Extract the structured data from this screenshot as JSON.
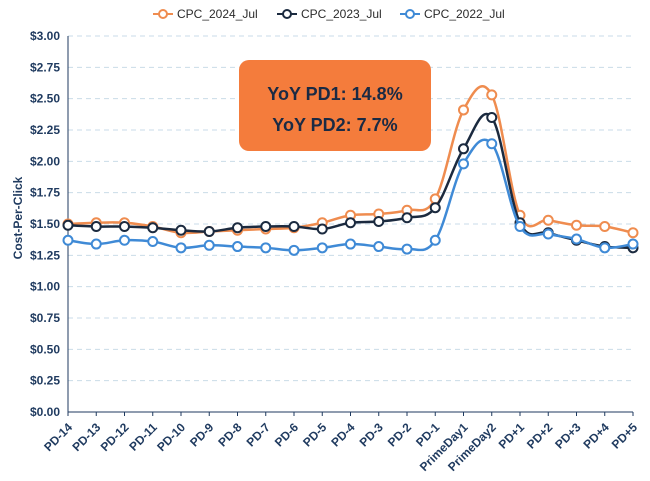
{
  "chart_data": {
    "type": "line",
    "ylabel": "Cost-Per-Click",
    "xlabel": "",
    "ylim": [
      0,
      3.0
    ],
    "y_ticks": [
      "$0.00",
      "$0.25",
      "$0.50",
      "$0.75",
      "$1.00",
      "$1.25",
      "$1.50",
      "$1.75",
      "$2.00",
      "$2.25",
      "$2.50",
      "$2.75",
      "$3.00"
    ],
    "grid": true,
    "legend_position": "top",
    "categories": [
      "PD-14",
      "PD-13",
      "PD-12",
      "PD-11",
      "PD-10",
      "PD-9",
      "PD-8",
      "PD-7",
      "PD-6",
      "PD-5",
      "PD-4",
      "PD-3",
      "PD-2",
      "PD-1",
      "PrimeDay1",
      "PrimeDay2",
      "PD+1",
      "PD+2",
      "PD+3",
      "PD+4",
      "PD+5"
    ],
    "series": [
      {
        "name": "CPC_2024_Jul",
        "color": "#ef8c4f",
        "values": [
          1.5,
          1.51,
          1.51,
          1.48,
          1.43,
          1.44,
          1.45,
          1.46,
          1.47,
          1.51,
          1.57,
          1.58,
          1.61,
          1.7,
          2.41,
          2.53,
          1.57,
          1.53,
          1.49,
          1.48,
          1.43
        ]
      },
      {
        "name": "CPC_2023_Jul",
        "color": "#1b2a3f",
        "values": [
          1.49,
          1.48,
          1.48,
          1.47,
          1.45,
          1.44,
          1.47,
          1.48,
          1.48,
          1.46,
          1.51,
          1.52,
          1.55,
          1.63,
          2.1,
          2.35,
          1.51,
          1.43,
          1.37,
          1.32,
          1.31
        ]
      },
      {
        "name": "CPC_2022_Jul",
        "color": "#3f8ad6",
        "values": [
          1.37,
          1.34,
          1.37,
          1.36,
          1.31,
          1.33,
          1.32,
          1.31,
          1.29,
          1.31,
          1.34,
          1.32,
          1.3,
          1.37,
          1.98,
          2.14,
          1.48,
          1.42,
          1.38,
          1.31,
          1.34
        ]
      }
    ],
    "annotation": {
      "lines": [
        "YoY PD1: 14.8%",
        "YoY PD2: 7.7%"
      ],
      "fill_color": "#f47c3c",
      "text_color": "#1a2a44"
    }
  }
}
